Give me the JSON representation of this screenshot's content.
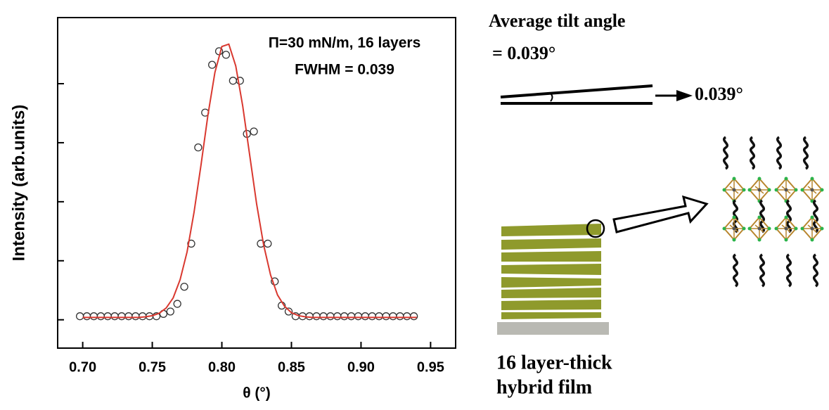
{
  "chart_data": {
    "type": "scatter",
    "x_label": "θ (°)",
    "y_label": "Intensity (arb.units)",
    "annotations": [
      "Π=30 mN/m, 16 layers",
      "FWHM = 0.039"
    ],
    "xlim": [
      0.682,
      0.968
    ],
    "ylim": [
      -0.48,
      5.12
    ],
    "xticks": [
      {
        "value": 0.7,
        "label": "0.70"
      },
      0.75,
      {
        "value": 0.8,
        "label": "0.80"
      },
      0.85,
      {
        "value": 0.9,
        "label": "0.90"
      },
      0.95
    ],
    "yticks": [
      0,
      1,
      2,
      3,
      4
    ],
    "series": [
      {
        "marker": "circle",
        "color": "#333333",
        "x": [
          0.698,
          0.703,
          0.708,
          0.713,
          0.718,
          0.723,
          0.728,
          0.733,
          0.738,
          0.743,
          0.748,
          0.753,
          0.758,
          0.763,
          0.768,
          0.773,
          0.778,
          0.783,
          0.788,
          0.793,
          0.798,
          0.803,
          0.808,
          0.813,
          0.818,
          0.823,
          0.828,
          0.833,
          0.838,
          0.843,
          0.848,
          0.853,
          0.858,
          0.863,
          0.868,
          0.873,
          0.878,
          0.883,
          0.888,
          0.893,
          0.898,
          0.903,
          0.908,
          0.913,
          0.918,
          0.923,
          0.928,
          0.933,
          0.938
        ],
        "values": [
          0.06,
          0.06,
          0.06,
          0.06,
          0.06,
          0.06,
          0.06,
          0.06,
          0.06,
          0.06,
          0.06,
          0.06,
          0.1,
          0.14,
          0.27,
          0.56,
          1.29,
          2.92,
          3.51,
          4.32,
          4.55,
          4.49,
          4.05,
          4.05,
          3.15,
          3.19,
          1.29,
          1.29,
          0.65,
          0.24,
          0.14,
          0.06,
          0.06,
          0.06,
          0.06,
          0.06,
          0.06,
          0.06,
          0.06,
          0.06,
          0.06,
          0.06,
          0.06,
          0.06,
          0.06,
          0.06,
          0.06,
          0.06,
          0.06
        ]
      },
      {
        "marker": "line",
        "color": "#d9382f",
        "x": [
          0.7,
          0.705,
          0.71,
          0.715,
          0.72,
          0.725,
          0.73,
          0.735,
          0.74,
          0.745,
          0.75,
          0.755,
          0.76,
          0.765,
          0.77,
          0.775,
          0.78,
          0.785,
          0.79,
          0.795,
          0.8,
          0.805,
          0.81,
          0.815,
          0.82,
          0.825,
          0.83,
          0.835,
          0.84,
          0.845,
          0.85,
          0.855,
          0.86,
          0.865,
          0.87,
          0.875,
          0.88,
          0.885,
          0.89,
          0.895,
          0.9,
          0.905,
          0.91,
          0.915,
          0.92,
          0.925,
          0.93,
          0.935,
          0.94
        ],
        "values": [
          0.04,
          0.04,
          0.04,
          0.04,
          0.04,
          0.04,
          0.04,
          0.04,
          0.04,
          0.05,
          0.07,
          0.11,
          0.2,
          0.37,
          0.68,
          1.15,
          1.82,
          2.62,
          3.47,
          4.19,
          4.63,
          4.67,
          4.3,
          3.62,
          2.79,
          1.96,
          1.27,
          0.76,
          0.42,
          0.23,
          0.12,
          0.07,
          0.05,
          0.04,
          0.04,
          0.04,
          0.04,
          0.04,
          0.04,
          0.04,
          0.04,
          0.04,
          0.04,
          0.04,
          0.04,
          0.04,
          0.04,
          0.04,
          0.04
        ]
      }
    ]
  },
  "diagram": {
    "title": "Average tilt angle",
    "tilt_value": "= 0.039°",
    "arrow_label": "0.039°",
    "film_label": [
      "16 layer-thick",
      "hybrid film"
    ]
  }
}
